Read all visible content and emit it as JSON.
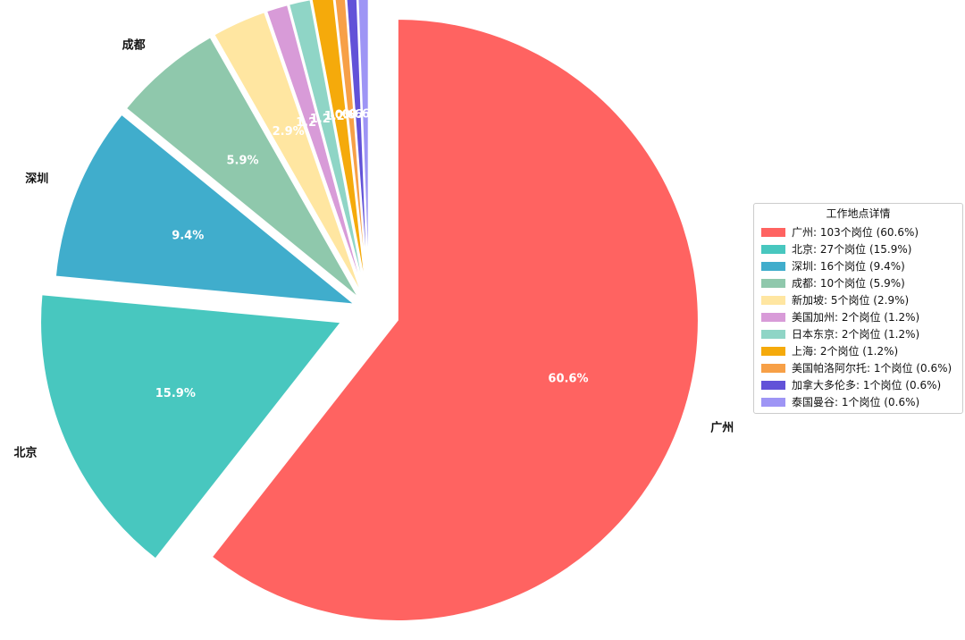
{
  "chart_data": {
    "type": "pie",
    "start_angle_deg": 90,
    "direction": "clockwise",
    "categories": [
      "广州",
      "北京",
      "深圳",
      "成都",
      "新加坡",
      "美国加州",
      "日本东京",
      "上海",
      "美国帕洛阿尔托",
      "加拿大多伦多",
      "泰国曼谷"
    ],
    "values": [
      103,
      27,
      16,
      10,
      5,
      2,
      2,
      2,
      1,
      1,
      1
    ],
    "percent_labels": [
      "60.6%",
      "15.9%",
      "9.4%",
      "5.9%",
      "2.9%",
      "1.2%",
      "1.2%",
      "1.2%",
      "0.6%",
      "0.6%",
      "0.6%"
    ],
    "outer_labels": [
      "广州",
      "北京",
      "深圳",
      "成都",
      "新加坡",
      "",
      "",
      "",
      "",
      "",
      ""
    ],
    "colors": [
      "#FF6361",
      "#48C7BF",
      "#40ADCC",
      "#8FC8AC",
      "#FFE6A1",
      "#D89BD8",
      "#8FD5C6",
      "#F5AA0B",
      "#F7A047",
      "#6252D8",
      "#9E95F5"
    ],
    "explode": [
      0.1,
      0.1,
      0.05,
      0.05,
      0.05,
      0.05,
      0.05,
      0.05,
      0.05,
      0.05,
      0.05
    ],
    "legend": {
      "title": "工作地点详情",
      "position": "center-right",
      "entries": [
        "广州: 103个岗位 (60.6%)",
        "北京: 27个岗位 (15.9%)",
        "深圳: 16个岗位 (9.4%)",
        "成都: 10个岗位 (5.9%)",
        "新加坡: 5个岗位 (2.9%)",
        "美国加州: 2个岗位 (1.2%)",
        "日本东京: 2个岗位 (1.2%)",
        "上海: 2个岗位 (1.2%)",
        "美国帕洛阿尔托: 1个岗位 (0.6%)",
        "加拿大多伦多: 1个岗位 (0.6%)",
        "泰国曼谷: 1个岗位 (0.6%)"
      ]
    }
  }
}
